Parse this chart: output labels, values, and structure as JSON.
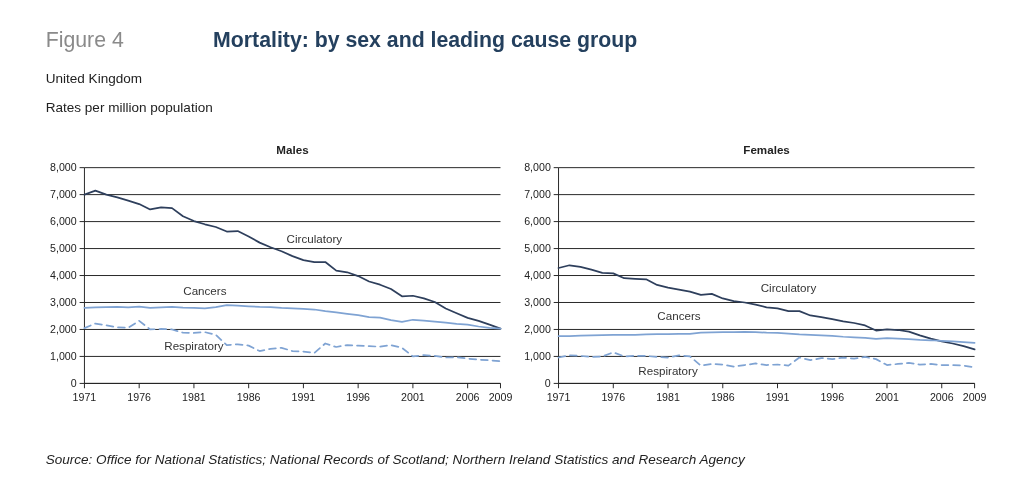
{
  "chart_data": [
    {
      "type": "other",
      "title": "Mortality: by sex and leading cause group",
      "subtitle": "United Kingdom",
      "annotations": [
        "Figure 4",
        "Rates per million population",
        "Source: Office for National Statistics; National Records of Scotland; Northern Ireland Statistics and Research Agency"
      ]
    },
    {
      "type": "line",
      "title": "Males",
      "x": [
        1971,
        1972,
        1973,
        1974,
        1975,
        1976,
        1977,
        1978,
        1979,
        1980,
        1981,
        1982,
        1983,
        1984,
        1985,
        1986,
        1987,
        1988,
        1989,
        1990,
        1991,
        1992,
        1993,
        1994,
        1995,
        1996,
        1997,
        1998,
        1999,
        2000,
        2001,
        2002,
        2003,
        2004,
        2005,
        2006,
        2007,
        2008,
        2009
      ],
      "series": [
        {
          "name": "Circulatory",
          "color": "#2e3f5c",
          "line_style": "solid",
          "values": [
            7000,
            7150,
            7000,
            6900,
            6780,
            6650,
            6450,
            6530,
            6500,
            6200,
            6020,
            5900,
            5800,
            5630,
            5650,
            5450,
            5220,
            5050,
            4900,
            4720,
            4570,
            4500,
            4500,
            4180,
            4120,
            3980,
            3780,
            3660,
            3500,
            3230,
            3250,
            3150,
            3020,
            2780,
            2600,
            2430,
            2320,
            2180,
            2030
          ]
        },
        {
          "name": "Cancers",
          "color": "#7fa3d3",
          "line_style": "solid",
          "values": [
            2800,
            2820,
            2830,
            2840,
            2820,
            2850,
            2800,
            2820,
            2840,
            2810,
            2800,
            2780,
            2830,
            2900,
            2880,
            2860,
            2840,
            2830,
            2800,
            2780,
            2760,
            2740,
            2680,
            2630,
            2580,
            2530,
            2460,
            2440,
            2350,
            2280,
            2360,
            2330,
            2290,
            2250,
            2210,
            2180,
            2110,
            2060,
            2030
          ]
        },
        {
          "name": "Respiratory",
          "color": "#7fa3d3",
          "line_style": "dashed",
          "values": [
            2050,
            2220,
            2150,
            2080,
            2060,
            2320,
            2000,
            2020,
            2000,
            1880,
            1870,
            1900,
            1800,
            1420,
            1450,
            1400,
            1200,
            1280,
            1320,
            1200,
            1180,
            1130,
            1480,
            1350,
            1420,
            1400,
            1380,
            1360,
            1420,
            1320,
            1000,
            1050,
            1020,
            960,
            970,
            920,
            880,
            860,
            820
          ]
        }
      ],
      "xlim": [
        1971,
        2009
      ],
      "xticks": [
        1971,
        1976,
        1981,
        1986,
        1991,
        1996,
        2001,
        2006,
        2009
      ],
      "ylim": [
        0,
        8000
      ],
      "yticks": [
        0,
        {
          "value": 1000,
          "label": "1,000"
        },
        {
          "value": 2000,
          "label": "2,000"
        },
        {
          "value": 3000,
          "label": "3,000"
        },
        {
          "value": 4000,
          "label": "4,000"
        },
        {
          "value": 5000,
          "label": "5,000"
        },
        {
          "value": 6000,
          "label": "6,000"
        },
        {
          "value": 7000,
          "label": "7,000"
        },
        {
          "value": 8000,
          "label": "8,000"
        }
      ],
      "grid": "y",
      "legend": false,
      "marker": "none"
    },
    {
      "type": "line",
      "title": "Females",
      "x": [
        1971,
        1972,
        1973,
        1974,
        1975,
        1976,
        1977,
        1978,
        1979,
        1980,
        1981,
        1982,
        1983,
        1984,
        1985,
        1986,
        1987,
        1988,
        1989,
        1990,
        1991,
        1992,
        1993,
        1994,
        1995,
        1996,
        1997,
        1998,
        1999,
        2000,
        2001,
        2002,
        2003,
        2004,
        2005,
        2006,
        2007,
        2008,
        2009
      ],
      "series": [
        {
          "name": "Circulatory",
          "color": "#2e3f5c",
          "line_style": "solid",
          "values": [
            4280,
            4380,
            4320,
            4220,
            4100,
            4080,
            3900,
            3880,
            3860,
            3650,
            3550,
            3480,
            3400,
            3280,
            3320,
            3150,
            3050,
            3000,
            2920,
            2820,
            2780,
            2680,
            2680,
            2520,
            2460,
            2380,
            2300,
            2240,
            2150,
            1960,
            2000,
            1980,
            1920,
            1780,
            1660,
            1560,
            1480,
            1380,
            1260
          ]
        },
        {
          "name": "Cancers",
          "color": "#7fa3d3",
          "line_style": "solid",
          "values": [
            1750,
            1750,
            1770,
            1780,
            1790,
            1800,
            1800,
            1800,
            1820,
            1830,
            1830,
            1840,
            1840,
            1880,
            1890,
            1900,
            1900,
            1910,
            1900,
            1880,
            1870,
            1850,
            1820,
            1800,
            1780,
            1760,
            1730,
            1710,
            1690,
            1650,
            1680,
            1660,
            1640,
            1610,
            1600,
            1580,
            1560,
            1530,
            1500
          ]
        },
        {
          "name": "Respiratory",
          "color": "#7fa3d3",
          "line_style": "dashed",
          "values": [
            960,
            1040,
            1020,
            980,
            1000,
            1150,
            1000,
            1020,
            1020,
            980,
            960,
            1040,
            1000,
            660,
            720,
            700,
            620,
            680,
            740,
            680,
            700,
            660,
            960,
            860,
            940,
            900,
            960,
            920,
            980,
            900,
            680,
            720,
            760,
            700,
            720,
            680,
            680,
            660,
            600
          ]
        }
      ],
      "xlim": [
        1971,
        2009
      ],
      "xticks": [
        1971,
        1976,
        1981,
        1986,
        1991,
        1996,
        2001,
        2006,
        2009
      ],
      "ylim": [
        0,
        8000
      ],
      "yticks": [
        0,
        {
          "value": 1000,
          "label": "1,000"
        },
        {
          "value": 2000,
          "label": "2,000"
        },
        {
          "value": 3000,
          "label": "3,000"
        },
        {
          "value": 4000,
          "label": "4,000"
        },
        {
          "value": 5000,
          "label": "5,000"
        },
        {
          "value": 6000,
          "label": "6,000"
        },
        {
          "value": 7000,
          "label": "7,000"
        },
        {
          "value": 8000,
          "label": "8,000"
        }
      ],
      "grid": "y",
      "legend": false,
      "marker": "none"
    }
  ]
}
